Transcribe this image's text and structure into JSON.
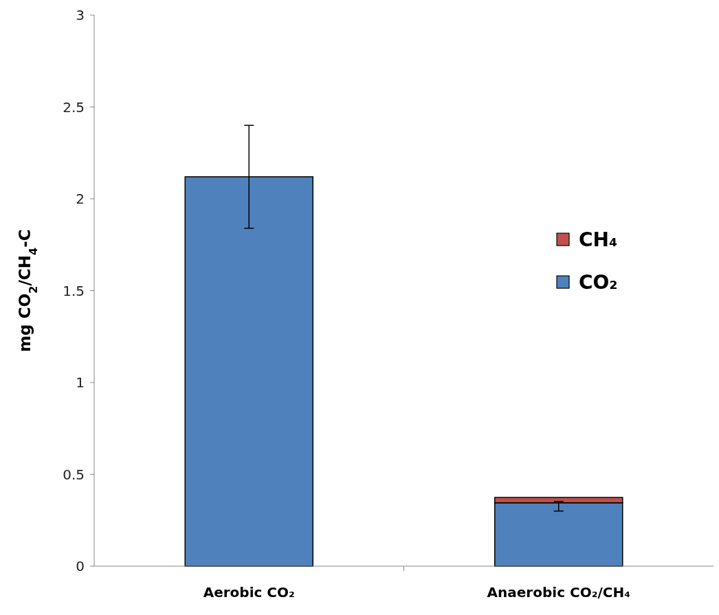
{
  "chart_data": {
    "type": "bar",
    "stacked": true,
    "ylabel": "mg CO$_{2}$/CH$_{4}$-C",
    "categories": [
      "Aerobic CO₂",
      "Anaerobic CO₂/CH₄"
    ],
    "series": [
      {
        "name": "CO₂",
        "color": "#4f81bd",
        "values": [
          2.12,
          0.345
        ],
        "errors": [
          [
            1.84,
            2.4
          ],
          [
            0.3,
            0.352
          ]
        ]
      },
      {
        "name": "CH₄",
        "color": "#c0504d",
        "values": [
          0,
          0.029
        ]
      }
    ],
    "ylim": [
      0,
      3
    ],
    "yticks": [
      0,
      0.5,
      1,
      1.5,
      2,
      2.5,
      3
    ],
    "grid": false,
    "legend": "right"
  }
}
